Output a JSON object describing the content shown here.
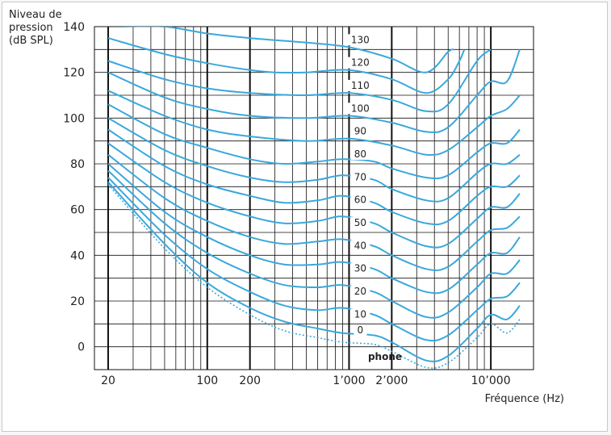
{
  "chart_data": {
    "type": "line",
    "title": "",
    "ylabel_lines": [
      "Niveau de",
      "pression",
      "(dB SPL)"
    ],
    "xlabel": "Fréquence (Hz)",
    "x_scale": "log",
    "xlim": [
      16,
      20000
    ],
    "ylim": [
      -10,
      140
    ],
    "x_tick_labels": [
      {
        "value": 20,
        "label": "20"
      },
      {
        "value": 100,
        "label": "100"
      },
      {
        "value": 200,
        "label": "200"
      },
      {
        "value": 1000,
        "label": "1’000"
      },
      {
        "value": 2000,
        "label": "2’000"
      },
      {
        "value": 10000,
        "label": "10’000"
      }
    ],
    "y_tick_labels": [
      {
        "value": 0,
        "label": "0"
      },
      {
        "value": 20,
        "label": "20"
      },
      {
        "value": 40,
        "label": "40"
      },
      {
        "value": 60,
        "label": "60"
      },
      {
        "value": 80,
        "label": "80"
      },
      {
        "value": 100,
        "label": "100"
      },
      {
        "value": 120,
        "label": "120"
      },
      {
        "value": 140,
        "label": "140"
      }
    ],
    "unit_label": "phone",
    "grid": true,
    "line_color": "#3aa8dc",
    "threshold_style": "dotted",
    "series": [
      {
        "name": "130",
        "points": [
          [
            25,
            140
          ],
          [
            50,
            140
          ],
          [
            100,
            137
          ],
          [
            200,
            135
          ],
          [
            500,
            133
          ],
          [
            1000,
            131
          ],
          [
            2000,
            126
          ],
          [
            3500,
            120
          ],
          [
            5000,
            129
          ],
          [
            5500,
            130
          ]
        ]
      },
      {
        "name": "120",
        "points": [
          [
            20,
            135
          ],
          [
            50,
            128
          ],
          [
            100,
            124
          ],
          [
            200,
            121
          ],
          [
            300,
            120
          ],
          [
            500,
            120
          ],
          [
            1000,
            121
          ],
          [
            2000,
            117
          ],
          [
            3500,
            111
          ],
          [
            5000,
            117
          ],
          [
            6000,
            125
          ],
          [
            6500,
            130
          ]
        ]
      },
      {
        "name": "110",
        "points": [
          [
            20,
            125
          ],
          [
            50,
            117
          ],
          [
            100,
            113
          ],
          [
            200,
            111
          ],
          [
            500,
            110
          ],
          [
            1000,
            111
          ],
          [
            2000,
            108
          ],
          [
            3500,
            103
          ],
          [
            5000,
            106
          ],
          [
            8000,
            125
          ],
          [
            10000,
            130
          ]
        ]
      },
      {
        "name": "100",
        "points": [
          [
            20,
            120
          ],
          [
            50,
            109
          ],
          [
            100,
            104
          ],
          [
            200,
            101
          ],
          [
            500,
            100
          ],
          [
            1000,
            101
          ],
          [
            2000,
            98
          ],
          [
            3500,
            94
          ],
          [
            5000,
            96
          ],
          [
            8000,
            110
          ],
          [
            10000,
            116
          ],
          [
            13000,
            116
          ],
          [
            16000,
            130
          ]
        ]
      },
      {
        "name": "90",
        "points": [
          [
            20,
            112
          ],
          [
            50,
            101
          ],
          [
            100,
            95
          ],
          [
            200,
            92
          ],
          [
            500,
            90
          ],
          [
            1000,
            91
          ],
          [
            2000,
            88
          ],
          [
            3500,
            84
          ],
          [
            5000,
            86
          ],
          [
            8000,
            96
          ],
          [
            10000,
            101
          ],
          [
            13000,
            104
          ],
          [
            16000,
            110
          ]
        ]
      },
      {
        "name": "80",
        "points": [
          [
            20,
            106
          ],
          [
            50,
            93
          ],
          [
            100,
            87
          ],
          [
            200,
            82
          ],
          [
            350,
            80
          ],
          [
            600,
            81
          ],
          [
            900,
            82
          ],
          [
            1500,
            81
          ],
          [
            2000,
            78
          ],
          [
            3500,
            74
          ],
          [
            5000,
            75
          ],
          [
            8000,
            85
          ],
          [
            10000,
            89
          ],
          [
            13000,
            89
          ],
          [
            16000,
            95
          ]
        ]
      },
      {
        "name": "70",
        "points": [
          [
            20,
            100
          ],
          [
            50,
            86
          ],
          [
            100,
            79
          ],
          [
            200,
            74
          ],
          [
            350,
            72
          ],
          [
            600,
            73
          ],
          [
            900,
            75
          ],
          [
            1500,
            73
          ],
          [
            2000,
            69
          ],
          [
            3500,
            64
          ],
          [
            5000,
            65
          ],
          [
            8000,
            76
          ],
          [
            10000,
            80
          ],
          [
            13000,
            80
          ],
          [
            16000,
            84
          ]
        ]
      },
      {
        "name": "60",
        "points": [
          [
            20,
            95
          ],
          [
            50,
            79
          ],
          [
            100,
            71
          ],
          [
            200,
            66
          ],
          [
            350,
            63
          ],
          [
            600,
            64
          ],
          [
            900,
            66
          ],
          [
            1500,
            63
          ],
          [
            2000,
            59
          ],
          [
            3500,
            54
          ],
          [
            5000,
            55
          ],
          [
            8000,
            66
          ],
          [
            10000,
            70
          ],
          [
            13000,
            70
          ],
          [
            16000,
            75
          ]
        ]
      },
      {
        "name": "50",
        "points": [
          [
            20,
            89
          ],
          [
            50,
            72
          ],
          [
            100,
            63
          ],
          [
            200,
            57
          ],
          [
            350,
            54
          ],
          [
            600,
            55
          ],
          [
            900,
            57
          ],
          [
            1500,
            54
          ],
          [
            2000,
            50
          ],
          [
            3500,
            44
          ],
          [
            5000,
            45
          ],
          [
            8000,
            56
          ],
          [
            10000,
            61
          ],
          [
            13000,
            61
          ],
          [
            16000,
            67
          ]
        ]
      },
      {
        "name": "40",
        "points": [
          [
            20,
            84
          ],
          [
            50,
            65
          ],
          [
            100,
            55
          ],
          [
            200,
            48
          ],
          [
            350,
            45
          ],
          [
            600,
            46
          ],
          [
            900,
            47
          ],
          [
            1500,
            44
          ],
          [
            2000,
            40
          ],
          [
            3500,
            34
          ],
          [
            5000,
            35
          ],
          [
            8000,
            46
          ],
          [
            10000,
            51
          ],
          [
            13000,
            52
          ],
          [
            16000,
            57
          ]
        ]
      },
      {
        "name": "30",
        "points": [
          [
            20,
            80
          ],
          [
            50,
            59
          ],
          [
            100,
            48
          ],
          [
            200,
            40
          ],
          [
            350,
            36
          ],
          [
            600,
            36
          ],
          [
            900,
            37
          ],
          [
            1500,
            34
          ],
          [
            2000,
            30
          ],
          [
            3500,
            24
          ],
          [
            5000,
            25
          ],
          [
            8000,
            36
          ],
          [
            10000,
            41
          ],
          [
            13000,
            41
          ],
          [
            16000,
            48
          ]
        ]
      },
      {
        "name": "20",
        "points": [
          [
            20,
            77
          ],
          [
            50,
            54
          ],
          [
            100,
            41
          ],
          [
            200,
            32
          ],
          [
            350,
            27
          ],
          [
            600,
            26
          ],
          [
            900,
            27
          ],
          [
            1500,
            24
          ],
          [
            2000,
            20
          ],
          [
            3500,
            13
          ],
          [
            5000,
            15
          ],
          [
            8000,
            26
          ],
          [
            10000,
            32
          ],
          [
            13000,
            32
          ],
          [
            16000,
            38
          ]
        ]
      },
      {
        "name": "10",
        "points": [
          [
            20,
            74
          ],
          [
            50,
            49
          ],
          [
            100,
            34
          ],
          [
            200,
            24
          ],
          [
            350,
            18
          ],
          [
            600,
            16
          ],
          [
            900,
            17
          ],
          [
            1500,
            14
          ],
          [
            2000,
            10
          ],
          [
            3500,
            3
          ],
          [
            5000,
            5
          ],
          [
            8000,
            16
          ],
          [
            10000,
            21
          ],
          [
            13000,
            22
          ],
          [
            16000,
            28
          ]
        ]
      },
      {
        "name": "0",
        "points": [
          [
            20,
            72
          ],
          [
            50,
            45
          ],
          [
            100,
            28
          ],
          [
            200,
            17
          ],
          [
            350,
            11
          ],
          [
            600,
            8
          ],
          [
            900,
            6
          ],
          [
            1500,
            5
          ],
          [
            2000,
            2
          ],
          [
            3500,
            -6
          ],
          [
            5000,
            -4
          ],
          [
            8000,
            8
          ],
          [
            10000,
            14
          ],
          [
            13000,
            12
          ],
          [
            16000,
            18
          ]
        ]
      },
      {
        "name": "",
        "dotted": true,
        "points": [
          [
            20,
            71
          ],
          [
            50,
            43
          ],
          [
            100,
            26
          ],
          [
            200,
            14
          ],
          [
            350,
            7
          ],
          [
            600,
            4
          ],
          [
            900,
            2
          ],
          [
            1500,
            1
          ],
          [
            2000,
            -2
          ],
          [
            3500,
            -9
          ],
          [
            5000,
            -7
          ],
          [
            8000,
            4
          ],
          [
            10000,
            10
          ],
          [
            13000,
            6
          ],
          [
            16000,
            12
          ]
        ]
      }
    ],
    "phon_labels": [
      {
        "text": "130",
        "x": 1200,
        "y": 130
      },
      {
        "text": "120",
        "x": 1200,
        "y": 120
      },
      {
        "text": "110",
        "x": 1200,
        "y": 110
      },
      {
        "text": "100",
        "x": 1200,
        "y": 100
      },
      {
        "text": "90",
        "x": 1200,
        "y": 90
      },
      {
        "text": "80",
        "x": 1200,
        "y": 80
      },
      {
        "text": "70",
        "x": 1200,
        "y": 70
      },
      {
        "text": "60",
        "x": 1200,
        "y": 60
      },
      {
        "text": "50",
        "x": 1200,
        "y": 50
      },
      {
        "text": "40",
        "x": 1200,
        "y": 40
      },
      {
        "text": "30",
        "x": 1200,
        "y": 30
      },
      {
        "text": "20",
        "x": 1200,
        "y": 20
      },
      {
        "text": "10",
        "x": 1200,
        "y": 10
      },
      {
        "text": "0",
        "x": 1200,
        "y": 3
      }
    ]
  }
}
